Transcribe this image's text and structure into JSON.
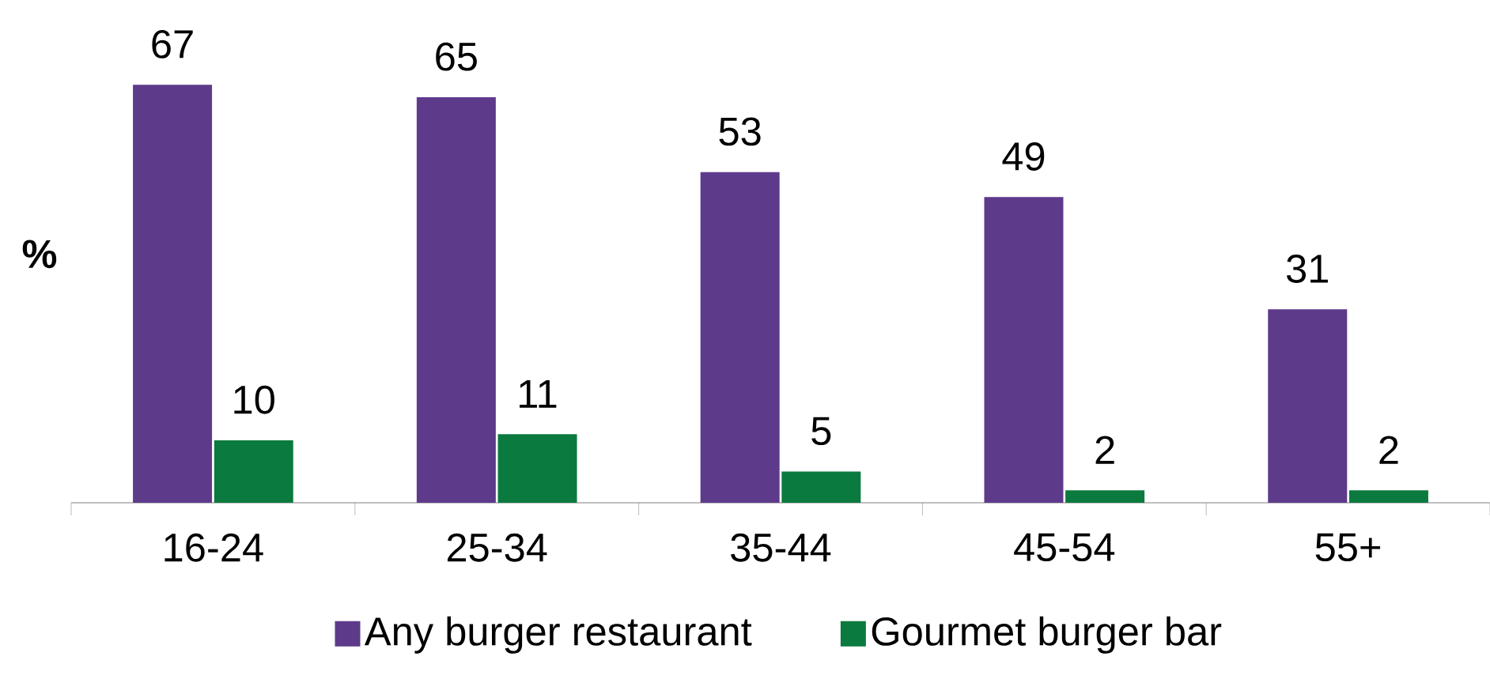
{
  "chart_data": {
    "type": "bar",
    "ylabel": "%",
    "categories": [
      "16-24",
      "25-34",
      "35-44",
      "45-54",
      "55+"
    ],
    "series": [
      {
        "name": "Any burger restaurant",
        "color": "#5e3a8b",
        "values": [
          67,
          65,
          53,
          49,
          31
        ]
      },
      {
        "name": "Gourmet burger bar",
        "color": "#0b7a3e",
        "values": [
          10,
          11,
          5,
          2,
          2
        ]
      }
    ],
    "data_labels": true,
    "legend": "bottom"
  }
}
